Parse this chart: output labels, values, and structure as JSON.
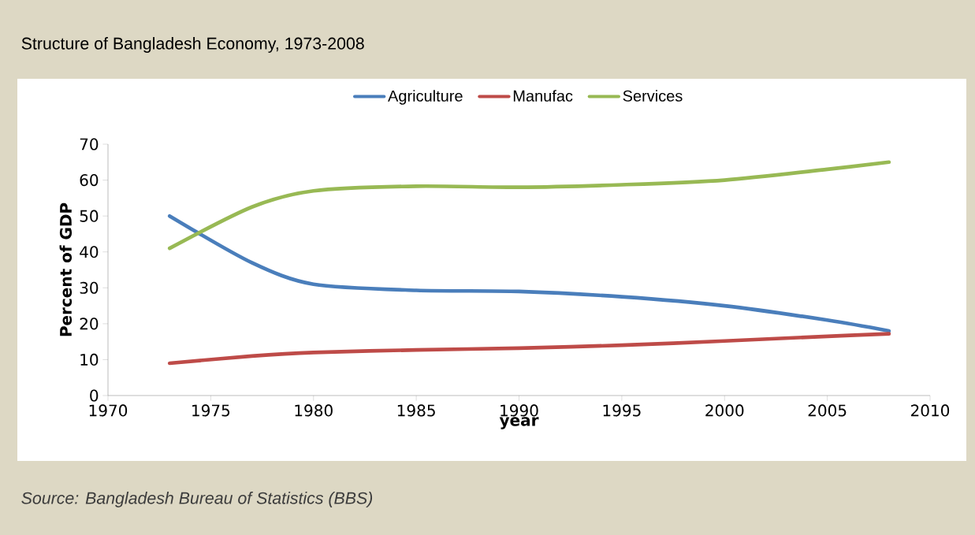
{
  "chart_data": {
    "type": "line",
    "title": "Structure of Bangladesh Economy, 1973-2008",
    "xlabel": "year",
    "ylabel": "Percent of GDP",
    "x": [
      1973,
      1977,
      1980,
      1985,
      1990,
      1995,
      2000,
      2005,
      2008
    ],
    "series": [
      {
        "name": "Agriculture",
        "color": "#4a7ebb",
        "values": [
          50,
          37,
          31,
          29.3,
          29,
          27.5,
          25,
          21,
          18
        ]
      },
      {
        "name": "Manufac",
        "color": "#be4b48",
        "values": [
          9,
          11,
          12,
          12.7,
          13.2,
          14,
          15.2,
          16.5,
          17.2
        ]
      },
      {
        "name": "Services",
        "color": "#98b954",
        "values": [
          41,
          52.5,
          57,
          58.3,
          58,
          58.7,
          60,
          63,
          65
        ]
      }
    ],
    "xlim": [
      1970,
      2010
    ],
    "ylim": [
      0,
      70
    ],
    "xticks": [
      1970,
      1975,
      1980,
      1985,
      1990,
      1995,
      2000,
      2005,
      2010
    ],
    "yticks": [
      0,
      10,
      20,
      30,
      40,
      50,
      60,
      70
    ],
    "legend": "top",
    "grid": false,
    "marker": "none",
    "line_style": "solid",
    "annotations": [
      "Source: Bangladesh Bureau of Statistics (BBS)"
    ]
  }
}
